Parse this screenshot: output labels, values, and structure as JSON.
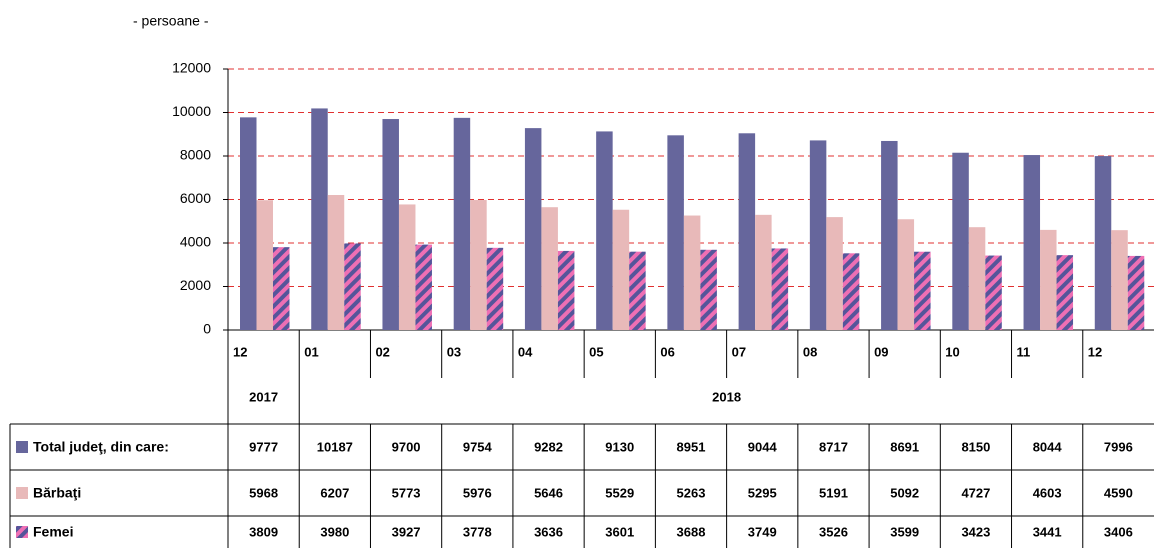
{
  "chart_data": {
    "type": "bar",
    "y_axis_label": "- persoane -",
    "categories": [
      "12",
      "01",
      "02",
      "03",
      "04",
      "05",
      "06",
      "07",
      "08",
      "09",
      "10",
      "11",
      "12"
    ],
    "year_groups": [
      {
        "label": "2017",
        "span": 1
      },
      {
        "label": "2018",
        "span": 12
      }
    ],
    "series": [
      {
        "name": "Total judeţ, din care:",
        "color": "#66669c",
        "values": [
          9777,
          10187,
          9700,
          9754,
          9282,
          9130,
          8951,
          9044,
          8717,
          8691,
          8150,
          8044,
          7996
        ]
      },
      {
        "name": "Bărbaţi",
        "color": "#e8b9b9",
        "values": [
          5968,
          6207,
          5773,
          5976,
          5646,
          5529,
          5263,
          5295,
          5191,
          5092,
          4727,
          4603,
          4590
        ]
      },
      {
        "name": "Femei",
        "color": "#ee6fb4",
        "values": [
          3809,
          3980,
          3927,
          3778,
          3636,
          3601,
          3688,
          3749,
          3526,
          3599,
          3423,
          3441,
          3406
        ]
      }
    ],
    "ylim": [
      0,
      12000
    ],
    "yticks": [
      0,
      2000,
      4000,
      6000,
      8000,
      10000,
      12000
    ],
    "grid": true
  }
}
